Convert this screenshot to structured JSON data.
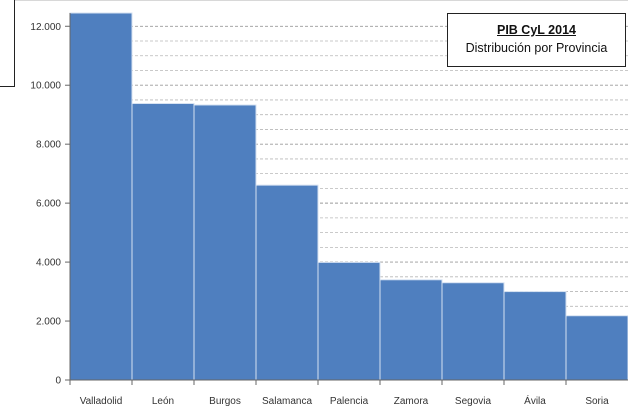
{
  "chart_data": {
    "type": "bar",
    "title": "PIB CyL 2014",
    "subtitle": "Distribución por Provincia",
    "categories": [
      "Valladolid",
      "León",
      "Burgos",
      "Salamanca",
      "Palencia",
      "Zamora",
      "Segovia",
      "Ávila",
      "Soria"
    ],
    "values": [
      12450,
      9380,
      9330,
      6610,
      3990,
      3400,
      3300,
      3000,
      2180
    ],
    "yticks": [
      0,
      2000,
      4000,
      6000,
      8000,
      10000,
      12000
    ],
    "ytick_labels": [
      "0",
      "2.000",
      "4.000",
      "6.000",
      "8.000",
      "10.000",
      "12.000"
    ],
    "ylim": [
      0,
      12450
    ],
    "grid": true,
    "legend": "none",
    "bar_color": "#4f7fbf",
    "bar_edge_color": "#d6e2f2",
    "grid_color": "#b8b8b8"
  }
}
